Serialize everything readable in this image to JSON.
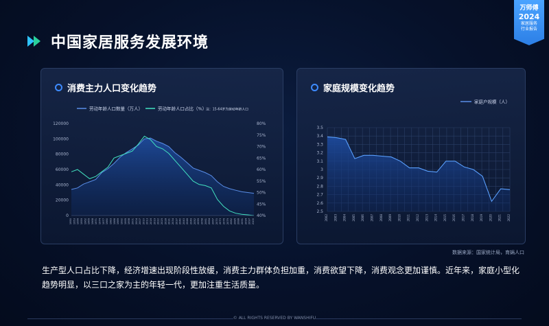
{
  "header": {
    "title": "中国家居服务发展环境"
  },
  "badge": {
    "brand": "万师傅",
    "year": "2024",
    "sub1": "家居服务",
    "sub2": "行业报告"
  },
  "chart_data": [
    {
      "type": "area",
      "title": "消费主力人口变化趋势",
      "legend": [
        "劳动年龄人口数量（万人）",
        "劳动年龄人口占比（%）"
      ],
      "note": "注：15-64岁为劳动年龄人口",
      "x": [
        1950,
        1955,
        1960,
        1965,
        1970,
        1975,
        1980,
        1985,
        1990,
        1995,
        2000,
        2005,
        2010,
        2015,
        2020,
        2025,
        2030,
        2035,
        2040,
        2045,
        2050,
        2055,
        2060,
        2065,
        2070,
        2075,
        2080,
        2085,
        2090,
        2095,
        2100
      ],
      "x_ticks": [
        "1950",
        "1953",
        "1956",
        "1959",
        "1962",
        "1965",
        "1968",
        "1971",
        "1974",
        "1977",
        "1980",
        "1983",
        "1986",
        "1989",
        "1992",
        "1995",
        "1998",
        "2001",
        "2004",
        "2007",
        "2010",
        "2013",
        "2016",
        "2019",
        "2022",
        "2025",
        "2028",
        "2031",
        "2034",
        "2037",
        "2040",
        "2043",
        "2046",
        "2049",
        "2052",
        "2055",
        "2058",
        "2061",
        "2064",
        "2067",
        "2070",
        "2073",
        "2076",
        "2079",
        "2082",
        "2085",
        "2088",
        "2091",
        "2094",
        "2097",
        "2100"
      ],
      "series": [
        {
          "name": "劳动年龄人口数量（万人）",
          "axis": "left",
          "values": [
            34000,
            36000,
            41000,
            44000,
            47000,
            56000,
            61000,
            68000,
            76000,
            82000,
            87000,
            92000,
            100000,
            101000,
            97000,
            94000,
            90000,
            82000,
            76000,
            69000,
            62000,
            59000,
            56000,
            52000,
            44000,
            38000,
            35000,
            33000,
            31000,
            30000,
            29000
          ]
        },
        {
          "name": "劳动年龄人口占比（%）",
          "axis": "right",
          "values": [
            59,
            60,
            58,
            56,
            57,
            59,
            61,
            65,
            66,
            67,
            68,
            71,
            74.5,
            73,
            70,
            69,
            67,
            64,
            61,
            58,
            55,
            53.5,
            53,
            52,
            47,
            44,
            42,
            41,
            40.5,
            40.3,
            40
          ]
        }
      ],
      "ylim_left": [
        0,
        120000
      ],
      "yticks_left": [
        "0",
        "20000",
        "40000",
        "60000",
        "80000",
        "100000",
        "120000"
      ],
      "ylim_right": [
        40,
        80
      ],
      "yticks_right": [
        "40%",
        "45%",
        "50%",
        "55%",
        "60%",
        "65%",
        "70%",
        "75%",
        "80%"
      ],
      "grid": false
    },
    {
      "type": "area",
      "title": "家庭规模变化趋势",
      "legend": [
        "家庭户规模（人）"
      ],
      "x": [
        2002,
        2003,
        2004,
        2005,
        2006,
        2007,
        2008,
        2009,
        2010,
        2011,
        2012,
        2013,
        2014,
        2015,
        2016,
        2017,
        2018,
        2019,
        2020,
        2021,
        2022
      ],
      "series": [
        {
          "name": "家庭户规模（人）",
          "values": [
            3.39,
            3.38,
            3.36,
            3.13,
            3.17,
            3.17,
            3.16,
            3.15,
            3.1,
            3.02,
            3.02,
            2.98,
            2.97,
            3.1,
            3.1,
            3.03,
            3.0,
            2.92,
            2.62,
            2.77,
            2.76
          ]
        }
      ],
      "ylim": [
        2.5,
        3.5
      ],
      "yticks": [
        "2.5",
        "2.6",
        "2.7",
        "2.8",
        "2.9",
        "3",
        "3.1",
        "3.2",
        "3.3",
        "3.4",
        "3.5"
      ],
      "grid": true
    }
  ],
  "source": "数据来源：国家统计局，育娲人口",
  "description": "生产型人口占比下降，经济增速出现阶段性放缓，消费主力群体负担加重，消费欲望下降，消费观念更加谨慎。近年来，家庭小型化趋势明显，以三口之家为主的年轻一代，更加注重生活质量。",
  "footer": "© ALL RIGHTS RESERVED BY WANSHIFU"
}
